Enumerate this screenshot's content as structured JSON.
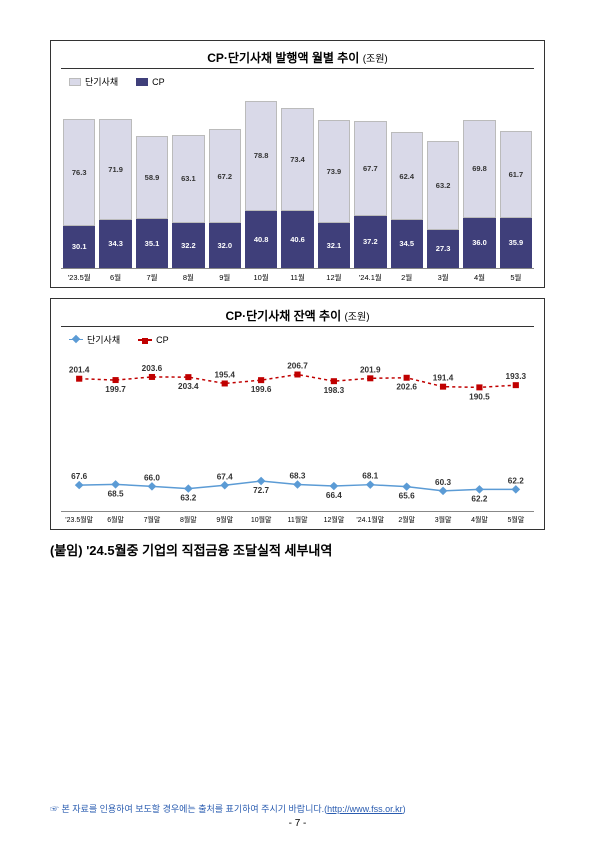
{
  "chart1": {
    "title": "CP·단기사채 발행액 월별 추이",
    "unit": "(조원)",
    "legend": {
      "a": "단기사채",
      "b": "CP"
    },
    "colors": {
      "a": "#d9d9e8",
      "b": "#3f3f7a",
      "border": "#888888",
      "text_on_a": "#333333"
    },
    "max": 125,
    "categories": [
      "'23.5월",
      "6월",
      "7월",
      "8월",
      "9월",
      "10월",
      "11월",
      "12월",
      "'24.1월",
      "2월",
      "3월",
      "4월",
      "5월"
    ],
    "series_top": [
      76.3,
      71.9,
      58.9,
      63.1,
      67.2,
      78.8,
      73.4,
      73.9,
      67.7,
      62.4,
      63.2,
      69.8,
      61.7
    ],
    "series_bot": [
      30.1,
      34.3,
      35.1,
      32.2,
      32.0,
      40.8,
      40.6,
      32.1,
      37.2,
      34.5,
      27.3,
      36.0,
      35.9
    ]
  },
  "chart2": {
    "title": "CP·단기사채 잔액 추이",
    "unit": "(조원)",
    "legend": {
      "a": "단기사채",
      "b": "CP"
    },
    "colors": {
      "a_line": "#5b9bd5",
      "a_marker": "#5b9bd5",
      "b_line": "#c00000",
      "b_marker": "#c00000",
      "text": "#333333"
    },
    "ymin": 40,
    "ymax": 230,
    "categories": [
      "'23.5월말",
      "6월말",
      "7월말",
      "8월말",
      "9월말",
      "10월말",
      "11월말",
      "12월말",
      "'24.1월말",
      "2월말",
      "3월말",
      "4월말",
      "5월말"
    ],
    "series_top": [
      201.4,
      199.7,
      203.6,
      203.4,
      195.4,
      199.6,
      206.7,
      198.3,
      201.9,
      202.6,
      191.4,
      190.5,
      193.3
    ],
    "series_bot": [
      67.6,
      68.5,
      66.0,
      63.2,
      67.4,
      72.7,
      68.3,
      66.4,
      68.1,
      65.6,
      60.3,
      62.2,
      62.2
    ]
  },
  "attach": "(붙임) '24.5월중 기업의 직접금융 조달실적 세부내역",
  "footer": {
    "prefix": "☞ 본 자료를 인용하여 보도할 경우에는 출처를 표기하여 주시기 바랍니다.(",
    "link_text": "http://www.fss.or.kr",
    "suffix": ")"
  },
  "page": "- 7 -"
}
